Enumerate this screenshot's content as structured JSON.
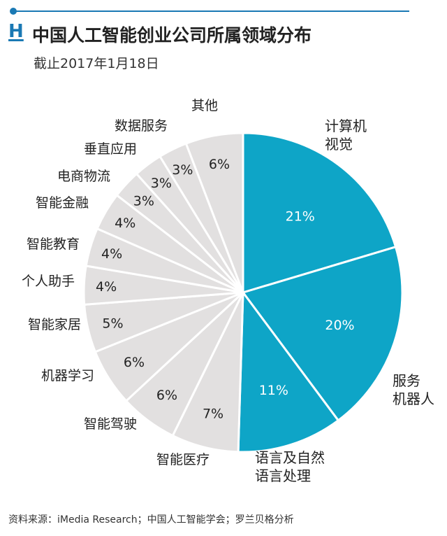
{
  "header": {
    "brand_letter": "H",
    "title": "中国人工智能创业公司所属领域分布",
    "subtitle": "截止2017年1月18日"
  },
  "colors": {
    "highlight": "#0ea5c7",
    "other": "#e2e0e0",
    "divider": "#ffffff",
    "brand": "#1a79b4"
  },
  "chart_data": {
    "type": "pie",
    "unit": "%",
    "slices": [
      {
        "label": "计算机视觉",
        "label_lines": [
          "计算机",
          "视觉"
        ],
        "value": 21,
        "value_label": "21%",
        "highlight": true
      },
      {
        "label": "服务机器人",
        "label_lines": [
          "服务",
          "机器人"
        ],
        "value": 20,
        "value_label": "20%",
        "highlight": true
      },
      {
        "label": "语言及自然语言处理",
        "label_lines": [
          "语言及自然",
          "语言处理"
        ],
        "value": 11,
        "value_label": "11%",
        "highlight": true
      },
      {
        "label": "智能医疗",
        "label_lines": [
          "智能医疗"
        ],
        "value": 7,
        "value_label": "7%",
        "highlight": false
      },
      {
        "label": "智能驾驶",
        "label_lines": [
          "智能驾驶"
        ],
        "value": 6,
        "value_label": "6%",
        "highlight": false
      },
      {
        "label": "机器学习",
        "label_lines": [
          "机器学习"
        ],
        "value": 6,
        "value_label": "6%",
        "highlight": false
      },
      {
        "label": "智能家居",
        "label_lines": [
          "智能家居"
        ],
        "value": 5,
        "value_label": "5%",
        "highlight": false
      },
      {
        "label": "个人助手",
        "label_lines": [
          "个人助手"
        ],
        "value": 4,
        "value_label": "4%",
        "highlight": false
      },
      {
        "label": "智能教育",
        "label_lines": [
          "智能教育"
        ],
        "value": 4,
        "value_label": "4%",
        "highlight": false
      },
      {
        "label": "智能金融",
        "label_lines": [
          "智能金融"
        ],
        "value": 4,
        "value_label": "4%",
        "highlight": false
      },
      {
        "label": "电商物流",
        "label_lines": [
          "电商物流"
        ],
        "value": 3,
        "value_label": "3%",
        "highlight": false
      },
      {
        "label": "垂直应用",
        "label_lines": [
          "垂直应用"
        ],
        "value": 3,
        "value_label": "3%",
        "highlight": false
      },
      {
        "label": "数据服务",
        "label_lines": [
          "数据服务"
        ],
        "value": 3,
        "value_label": "3%",
        "highlight": false
      },
      {
        "label": "其他",
        "label_lines": [
          "其他"
        ],
        "value": 6,
        "value_label": "6%",
        "highlight": false
      }
    ]
  },
  "footer": {
    "source": "资料来源：iMedia Research；中国人工智能学会；罗兰贝格分析"
  }
}
